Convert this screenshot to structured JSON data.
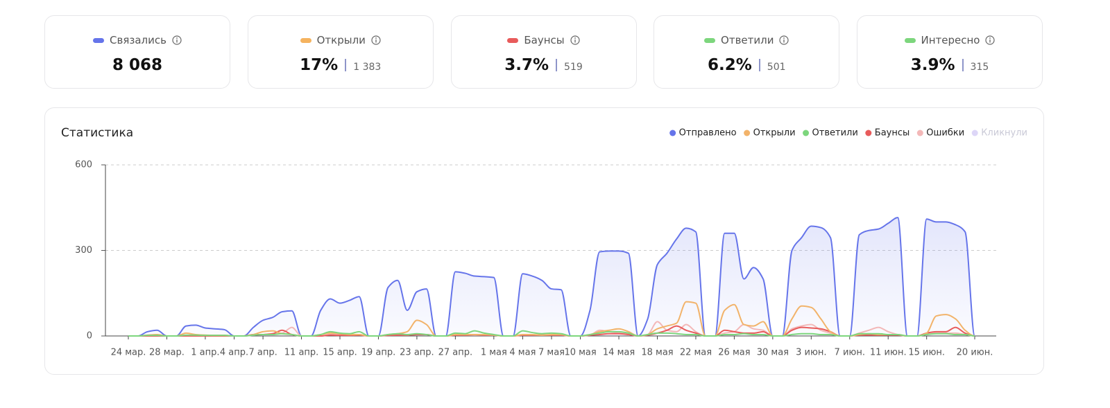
{
  "cards": [
    {
      "label": "Связались",
      "color": "#6574ea",
      "value": "8 068"
    },
    {
      "label": "Открыли",
      "color": "#f5b35f",
      "value": "17%",
      "count": "1 383"
    },
    {
      "label": "Баунсы",
      "color": "#e85b5b",
      "value": "3.7%",
      "count": "519"
    },
    {
      "label": "Ответили",
      "color": "#7dd67d",
      "value": "6.2%",
      "count": "501"
    },
    {
      "label": "Интересно",
      "color": "#7dd67d",
      "value": "3.9%",
      "count": "315"
    }
  ],
  "chart_data": {
    "type": "line",
    "title": "Статистика",
    "categories": [
      "24 мар.",
      null,
      null,
      null,
      "28 мар.",
      null,
      null,
      null,
      "1 апр.",
      null,
      null,
      "4 апр.",
      null,
      null,
      "7 апр.",
      null,
      null,
      null,
      "11 апр.",
      null,
      null,
      null,
      "15 апр.",
      null,
      null,
      null,
      "19 апр.",
      null,
      null,
      null,
      "23 апр.",
      null,
      null,
      null,
      "27 апр.",
      null,
      null,
      null,
      "1 мая",
      null,
      null,
      "4 мая",
      null,
      null,
      "7 мая",
      null,
      null,
      "10 мая",
      null,
      null,
      null,
      "14 мая",
      null,
      null,
      null,
      "18 мая",
      null,
      null,
      null,
      "22 мая",
      null,
      null,
      null,
      "26 мая",
      null,
      null,
      null,
      "30 мая",
      null,
      null,
      null,
      "3 июн.",
      null,
      null,
      null,
      "7 июн.",
      null,
      null,
      null,
      "11 июн.",
      null,
      null,
      null,
      "15 июн.",
      null,
      null,
      null,
      null,
      "20 июн."
    ],
    "series": [
      {
        "name": "Отправлено",
        "color": "#6574ea",
        "area": true,
        "values": [
          0,
          0,
          15,
          20,
          0,
          0,
          35,
          38,
          28,
          25,
          22,
          0,
          0,
          30,
          55,
          65,
          85,
          88,
          0,
          0,
          90,
          130,
          115,
          125,
          138,
          0,
          0,
          170,
          195,
          90,
          155,
          165,
          0,
          0,
          225,
          220,
          210,
          208,
          205,
          0,
          0,
          218,
          210,
          195,
          165,
          162,
          0,
          0,
          90,
          295,
          298,
          298,
          290,
          0,
          60,
          250,
          290,
          340,
          378,
          365,
          0,
          0,
          360,
          360,
          200,
          240,
          200,
          0,
          0,
          300,
          345,
          385,
          380,
          345,
          0,
          0,
          355,
          370,
          375,
          395,
          415,
          0,
          0,
          410,
          400,
          400,
          390,
          365,
          0
        ]
      },
      {
        "name": "Открыли",
        "color": "#f2b36a",
        "values": [
          0,
          0,
          3,
          5,
          0,
          0,
          10,
          5,
          3,
          2,
          2,
          0,
          0,
          5,
          15,
          18,
          8,
          5,
          0,
          0,
          5,
          10,
          8,
          5,
          5,
          0,
          0,
          5,
          8,
          15,
          55,
          40,
          0,
          0,
          5,
          5,
          5,
          5,
          3,
          0,
          0,
          5,
          5,
          3,
          5,
          5,
          0,
          0,
          5,
          15,
          20,
          25,
          15,
          0,
          5,
          25,
          35,
          45,
          120,
          115,
          0,
          0,
          90,
          110,
          40,
          35,
          50,
          0,
          0,
          60,
          105,
          100,
          60,
          15,
          0,
          0,
          5,
          8,
          5,
          5,
          5,
          0,
          0,
          10,
          70,
          75,
          60,
          20,
          0
        ]
      },
      {
        "name": "Ответили",
        "color": "#7dd67d",
        "values": [
          0,
          0,
          2,
          2,
          0,
          0,
          3,
          3,
          2,
          2,
          2,
          0,
          0,
          3,
          5,
          5,
          8,
          5,
          0,
          0,
          5,
          15,
          10,
          8,
          15,
          0,
          0,
          5,
          8,
          5,
          8,
          5,
          0,
          0,
          10,
          8,
          18,
          10,
          5,
          0,
          0,
          18,
          12,
          8,
          10,
          8,
          0,
          0,
          5,
          10,
          15,
          15,
          10,
          0,
          5,
          10,
          10,
          8,
          5,
          5,
          0,
          0,
          5,
          5,
          8,
          5,
          5,
          0,
          0,
          5,
          8,
          8,
          5,
          5,
          0,
          0,
          8,
          8,
          8,
          5,
          5,
          0,
          0,
          5,
          8,
          8,
          5,
          5,
          0
        ]
      },
      {
        "name": "Баунсы",
        "color": "#e85b5b",
        "values": [
          0,
          0,
          0,
          0,
          0,
          0,
          0,
          0,
          0,
          0,
          0,
          0,
          0,
          5,
          5,
          8,
          20,
          5,
          0,
          0,
          0,
          3,
          2,
          2,
          3,
          0,
          0,
          2,
          3,
          3,
          5,
          5,
          0,
          0,
          3,
          3,
          5,
          3,
          3,
          0,
          0,
          3,
          3,
          3,
          3,
          3,
          0,
          0,
          3,
          5,
          8,
          8,
          5,
          0,
          3,
          10,
          20,
          35,
          20,
          10,
          0,
          0,
          20,
          15,
          10,
          10,
          15,
          0,
          0,
          20,
          30,
          28,
          25,
          15,
          0,
          0,
          3,
          3,
          3,
          3,
          3,
          0,
          0,
          10,
          15,
          15,
          30,
          10,
          0
        ]
      },
      {
        "name": "Ошибки",
        "color": "#f3b8b8",
        "values": [
          0,
          0,
          0,
          0,
          0,
          0,
          0,
          0,
          0,
          0,
          0,
          0,
          0,
          3,
          5,
          8,
          10,
          30,
          0,
          0,
          0,
          5,
          5,
          3,
          5,
          0,
          0,
          3,
          3,
          3,
          5,
          5,
          0,
          0,
          3,
          3,
          3,
          3,
          3,
          0,
          0,
          3,
          3,
          3,
          3,
          3,
          0,
          0,
          3,
          20,
          15,
          10,
          8,
          0,
          5,
          50,
          20,
          15,
          40,
          15,
          0,
          0,
          10,
          15,
          40,
          25,
          20,
          0,
          0,
          25,
          35,
          40,
          20,
          10,
          0,
          0,
          10,
          20,
          30,
          15,
          5,
          0,
          0,
          5,
          10,
          10,
          10,
          5,
          0
        ]
      },
      {
        "name": "Кликнули",
        "color": "#ddd6f7",
        "hidden": true
      }
    ],
    "ylim": [
      0,
      600
    ],
    "yticks": [
      0,
      300,
      600
    ],
    "grid": true,
    "legend": "top-right"
  }
}
